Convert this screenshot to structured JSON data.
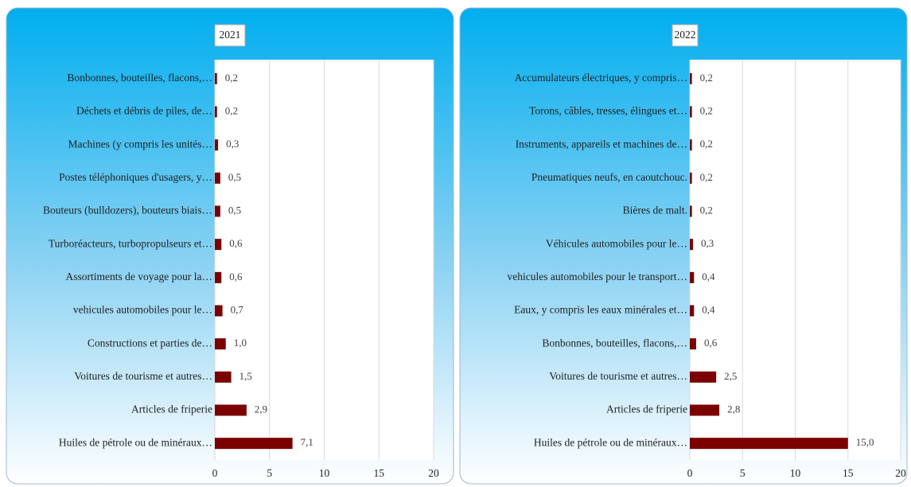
{
  "chart_data": [
    {
      "type": "bar",
      "orientation": "horizontal",
      "title": "2021",
      "categories": [
        "Bonbonnes, bouteilles, flacons,…",
        "Déchets et débris de piles, de…",
        "Machines (y compris les unités…",
        "Postes téléphoniques d'usagers, y…",
        "Bouteurs (bulldozers),  bouteurs biais…",
        "Turboréacteurs, turbopropulseurs et…",
        "Assortiments de voyage pour la…",
        "vehicules automobiles pour le…",
        "Constructions et parties de…",
        "Voitures de tourisme et autres…",
        "Articles de friperie",
        "Huiles de pétrole ou de minéraux…"
      ],
      "values": [
        0.2,
        0.2,
        0.3,
        0.5,
        0.5,
        0.6,
        0.6,
        0.7,
        1.0,
        1.5,
        2.9,
        7.1
      ],
      "value_labels": [
        "0,2",
        "0,2",
        "0,3",
        "0,5",
        "0,5",
        "0,6",
        "0,6",
        "0,7",
        "1,0",
        "1,5",
        "2,9",
        "7,1"
      ],
      "color": "#7b0000",
      "xlim": [
        0,
        20
      ],
      "xticks": [
        0,
        5,
        10,
        15,
        20
      ],
      "grid": true
    },
    {
      "type": "bar",
      "orientation": "horizontal",
      "title": "2022",
      "categories": [
        "Accumulateurs électriques, y compris…",
        "Torons, câbles, tresses, élingues et…",
        "Instruments, appareils et machines de…",
        "Pneumatiques neufs, en caoutchouc.",
        "Bières de malt.",
        "Véhicules automobiles pour le…",
        "vehicules automobiles pour le transport…",
        "Eaux, y compris les eaux minérales et…",
        "Bonbonnes, bouteilles, flacons,…",
        "Voitures de tourisme et autres…",
        "Articles de friperie",
        "Huiles de pétrole ou de minéraux…"
      ],
      "values": [
        0.2,
        0.2,
        0.2,
        0.2,
        0.2,
        0.3,
        0.4,
        0.4,
        0.6,
        2.5,
        2.8,
        15.0
      ],
      "value_labels": [
        "0,2",
        "0,2",
        "0,2",
        "0,2",
        "0,2",
        "0,3",
        "0,4",
        "0,4",
        "0,6",
        "2,5",
        "2,8",
        "15,0"
      ],
      "color": "#7b0000",
      "xlim": [
        0,
        20
      ],
      "xticks": [
        0,
        5,
        10,
        15,
        20
      ],
      "grid": true
    }
  ]
}
